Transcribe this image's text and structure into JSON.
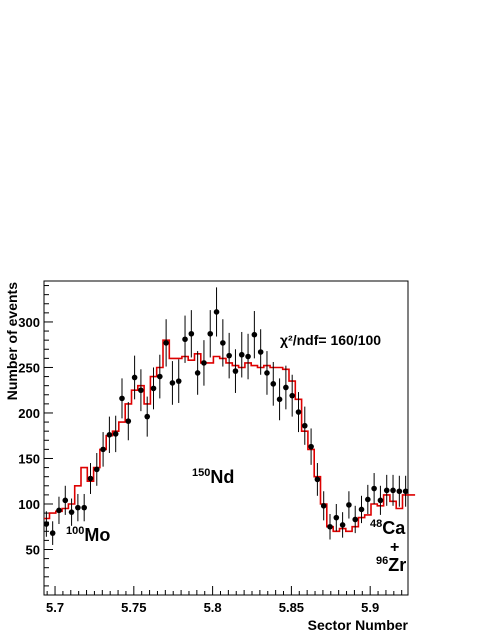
{
  "chart_data": {
    "type": "scatter",
    "xlabel": "Sector Number",
    "ylabel": "Number of events",
    "xlim": [
      5.693,
      5.924
    ],
    "ylim": [
      0,
      345
    ],
    "x_ticks": [
      5.7,
      5.75,
      5.8,
      5.85,
      5.9
    ],
    "x_tick_labels": [
      "5.7",
      "5.75",
      "5.8",
      "5.85",
      "5.9"
    ],
    "y_ticks": [
      50,
      100,
      150,
      200,
      250,
      300
    ],
    "y_tick_labels": [
      "50",
      "100",
      "150",
      "200",
      "250",
      "300"
    ],
    "grid": false,
    "data_points": {
      "x": [
        5.6945,
        5.6985,
        5.7025,
        5.7065,
        5.7105,
        5.7145,
        5.7185,
        5.7225,
        5.7265,
        5.7305,
        5.7345,
        5.7385,
        5.7425,
        5.7465,
        5.7505,
        5.7545,
        5.7585,
        5.7625,
        5.7665,
        5.7705,
        5.7745,
        5.7785,
        5.7825,
        5.7865,
        5.7905,
        5.7945,
        5.7985,
        5.8025,
        5.8065,
        5.8105,
        5.8145,
        5.8185,
        5.8225,
        5.8265,
        5.8305,
        5.8345,
        5.8385,
        5.8425,
        5.8465,
        5.8505,
        5.8545,
        5.8585,
        5.8625,
        5.8665,
        5.8705,
        5.8745,
        5.8785,
        5.8825,
        5.8865,
        5.8905,
        5.8945,
        5.8985,
        5.9025,
        5.9065,
        5.9105,
        5.9145,
        5.9185,
        5.9225
      ],
      "y": [
        78,
        68,
        93,
        104,
        91,
        96,
        96,
        128,
        138,
        160,
        176,
        177,
        216,
        191,
        239,
        225,
        196,
        227,
        240,
        277,
        233,
        235,
        281,
        287,
        244,
        255,
        287,
        311,
        277,
        263,
        246,
        264,
        262,
        286,
        267,
        244,
        232,
        215,
        228,
        219,
        201,
        186,
        163,
        127,
        98,
        75,
        85,
        77,
        99,
        83,
        94,
        105,
        117,
        104,
        115,
        115,
        114,
        114
      ],
      "yerr": [
        14,
        13,
        15,
        16,
        15,
        15,
        15,
        17,
        18,
        19,
        20,
        20,
        22,
        21,
        24,
        23,
        22,
        23,
        24,
        26,
        24,
        24,
        26,
        26,
        24,
        25,
        26,
        27,
        26,
        25,
        24,
        25,
        25,
        26,
        25,
        24,
        24,
        23,
        24,
        23,
        22,
        21,
        20,
        18,
        16,
        14,
        15,
        14,
        15,
        15,
        15,
        16,
        17,
        16,
        17,
        17,
        17,
        17
      ]
    },
    "fit": {
      "step": 0.004,
      "x_start": 5.6925,
      "y": [
        84,
        90,
        92,
        95,
        100,
        120,
        140,
        125,
        140,
        160,
        175,
        180,
        190,
        210,
        225,
        230,
        210,
        240,
        250,
        280,
        260,
        260,
        262,
        258,
        265,
        255,
        255,
        262,
        260,
        255,
        252,
        250,
        255,
        252,
        250,
        252,
        250,
        250,
        248,
        235,
        215,
        180,
        160,
        130,
        100,
        75,
        70,
        73,
        70,
        75,
        85,
        88,
        100,
        98,
        110,
        103,
        95,
        110,
        110,
        110
      ]
    },
    "annotations": {
      "chi2": "χ²/ndf= 160/100",
      "mo_sup": "100",
      "mo": "Mo",
      "nd_sup": "150",
      "nd": "Nd",
      "ca_sup": "48",
      "ca": "Ca",
      "plus": "+",
      "zr_sup": "96",
      "zr": "Zr"
    },
    "colors": {
      "points": "#000000",
      "fit": "#dd0000",
      "frame": "#000000"
    }
  }
}
